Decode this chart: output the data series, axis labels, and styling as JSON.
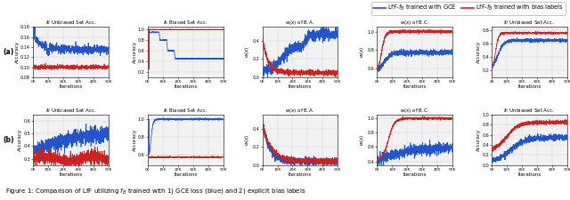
{
  "blue_color": "#2255CC",
  "red_color": "#CC2222",
  "grid_color": "#CCCCCC",
  "bg_color": "#F2F2F2",
  "row_labels": [
    "(a)",
    "(b)"
  ],
  "col_titles": [
    "$f_B$ Unbiased Set Acc.",
    "$f_B$ Biased Set Acc.",
    "$w(x)$ of B.A.",
    "$w(x)$ of B.C.",
    "$f_D$ Unbiased Set Acc."
  ],
  "xlabel": "Iterations",
  "ylabel_acc": "Accuracy",
  "ylabel_w": "$w(x)$",
  "legend_blue": "LfF-$f_B$ trained with GCE",
  "legend_red": "LfF-$f_B$ trained with bias labels",
  "caption": "Figure 1: Comparison of LfF utilizing $f_B$ trained with 1) GCE loss (blue) and 2) explicit bias labels",
  "n_points": 1000,
  "x_max": 50000
}
